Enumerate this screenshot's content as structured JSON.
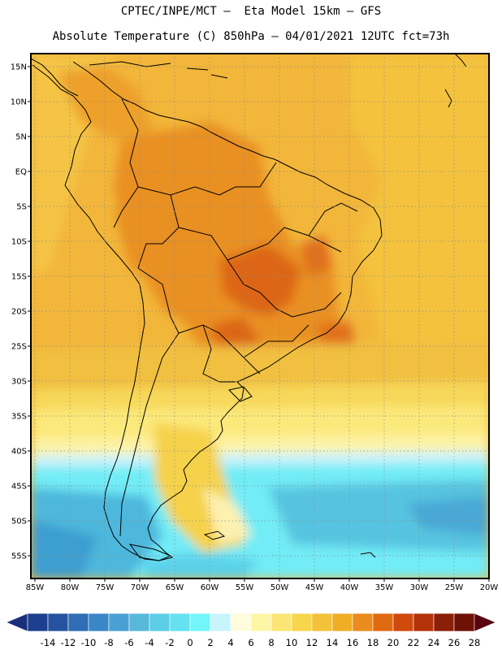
{
  "header": {
    "line1": "CPTEC/INPE/MCT –  Eta Model 15km – GFS",
    "line2": "Absolute Temperature (C) 850hPa – 04/01/2021 12UTC fct=73h"
  },
  "map": {
    "lat_labels": [
      "15N",
      "10N",
      "5N",
      "EQ",
      "5S",
      "10S",
      "15S",
      "20S",
      "25S",
      "30S",
      "35S",
      "40S",
      "45S",
      "50S",
      "55S"
    ],
    "lon_labels": [
      "85W",
      "80W",
      "75W",
      "70W",
      "65W",
      "60W",
      "55W",
      "50W",
      "45W",
      "40W",
      "35W",
      "30W",
      "25W",
      "20W"
    ],
    "lon_range": [
      -85,
      -20
    ],
    "lat_range": [
      -58,
      17
    ]
  },
  "colorbar": {
    "labels": [
      "-14",
      "-12",
      "-10",
      "-8",
      "-6",
      "-4",
      "-2",
      "0",
      "2",
      "4",
      "6",
      "8",
      "10",
      "12",
      "14",
      "16",
      "18",
      "20",
      "22",
      "24",
      "26",
      "28"
    ],
    "colors": [
      "#1e3f8e",
      "#2653a0",
      "#2f6db5",
      "#3a87c6",
      "#4aa0d2",
      "#57b8da",
      "#5ccde6",
      "#64e2f0",
      "#72f6fa",
      "#c8f4fc",
      "#fefcdc",
      "#fdf6a4",
      "#fbe675",
      "#f7d64e",
      "#f3c23a",
      "#eeae26",
      "#e98c1d",
      "#e06a12",
      "#cf4a0c",
      "#b43208",
      "#8c1f07",
      "#6e1206"
    ],
    "low_arrow_color": "#1a2f7a",
    "high_arrow_color": "#5a0410"
  }
}
